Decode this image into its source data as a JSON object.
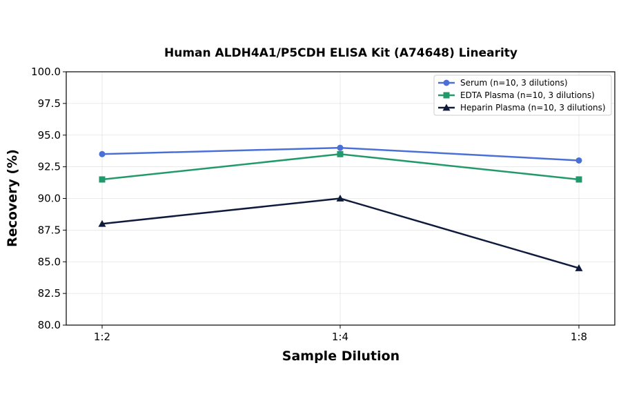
{
  "chart_data": {
    "type": "line",
    "title": "Human ALDH4A1/P5CDH ELISA Kit (A74648) Linearity",
    "xlabel": "Sample Dilution",
    "ylabel": "Recovery (%)",
    "categories": [
      "1:2",
      "1:4",
      "1:8"
    ],
    "ylim": [
      80.0,
      100.0
    ],
    "yticks": [
      "80.0",
      "82.5",
      "85.0",
      "87.5",
      "90.0",
      "92.5",
      "95.0",
      "97.5",
      "100.0"
    ],
    "grid": true,
    "legend_position": "top-right",
    "series": [
      {
        "name": "Serum (n=10, 3 dilutions)",
        "values": [
          93.5,
          94.0,
          93.0
        ],
        "color": "#4a6fd6",
        "marker": "circle"
      },
      {
        "name": "EDTA Plasma (n=10, 3 dilutions)",
        "values": [
          91.5,
          93.5,
          91.5
        ],
        "color": "#21996b",
        "marker": "square"
      },
      {
        "name": "Heparin Plasma (n=10, 3 dilutions)",
        "values": [
          88.0,
          90.0,
          84.5
        ],
        "color": "#0f1a3d",
        "marker": "triangle"
      }
    ]
  }
}
